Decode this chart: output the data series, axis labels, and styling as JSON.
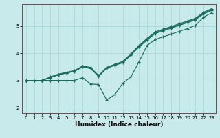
{
  "xlabel": "Humidex (Indice chaleur)",
  "background_color": "#c8eaea",
  "grid_color": "#a8d8d8",
  "line_color": "#1a6b5a",
  "xlim": [
    -0.5,
    23.5
  ],
  "ylim": [
    1.8,
    5.8
  ],
  "xticks": [
    0,
    1,
    2,
    3,
    4,
    5,
    6,
    7,
    8,
    9,
    10,
    11,
    12,
    13,
    14,
    15,
    16,
    17,
    18,
    19,
    20,
    21,
    22,
    23
  ],
  "yticks": [
    2,
    3,
    4,
    5
  ],
  "line1_x": [
    0,
    2,
    3,
    4,
    5,
    6,
    7,
    8,
    9,
    10,
    11,
    12,
    13,
    14,
    15,
    16,
    17,
    18,
    19,
    20,
    21,
    22,
    23
  ],
  "line1_y": [
    3.0,
    3.0,
    3.1,
    3.2,
    3.27,
    3.33,
    3.49,
    3.44,
    3.15,
    3.45,
    3.55,
    3.65,
    3.93,
    4.22,
    4.48,
    4.72,
    4.82,
    4.92,
    5.02,
    5.12,
    5.22,
    5.44,
    5.57
  ],
  "line2_x": [
    0,
    2,
    3,
    4,
    5,
    6,
    7,
    8,
    9,
    10,
    11,
    12,
    13,
    14,
    15,
    16,
    17,
    18,
    19,
    20,
    21,
    22,
    23
  ],
  "line2_y": [
    3.0,
    3.0,
    3.11,
    3.21,
    3.28,
    3.34,
    3.51,
    3.46,
    3.16,
    3.46,
    3.57,
    3.67,
    3.95,
    4.25,
    4.51,
    4.75,
    4.85,
    4.95,
    5.05,
    5.15,
    5.25,
    5.47,
    5.6
  ],
  "line3_x": [
    0,
    2,
    3,
    4,
    5,
    6,
    7,
    8,
    9,
    10,
    11,
    12,
    13,
    14,
    15,
    16,
    17,
    18,
    19,
    20,
    21,
    22,
    23
  ],
  "line3_y": [
    3.0,
    3.0,
    3.13,
    3.23,
    3.3,
    3.36,
    3.53,
    3.48,
    3.18,
    3.48,
    3.59,
    3.7,
    3.98,
    4.28,
    4.54,
    4.78,
    4.88,
    4.98,
    5.08,
    5.18,
    5.28,
    5.5,
    5.63
  ],
  "line4_x": [
    0,
    1,
    2,
    3,
    4,
    5,
    6,
    7,
    8,
    9,
    10,
    11,
    12,
    13,
    14,
    15,
    16,
    17,
    18,
    19,
    20,
    21,
    22,
    23
  ],
  "line4_y": [
    3.0,
    3.0,
    3.0,
    3.0,
    3.0,
    3.0,
    3.0,
    3.1,
    2.87,
    2.85,
    2.28,
    2.48,
    2.9,
    3.13,
    3.68,
    4.28,
    4.5,
    4.6,
    4.7,
    4.8,
    4.9,
    5.02,
    5.32,
    5.48
  ]
}
